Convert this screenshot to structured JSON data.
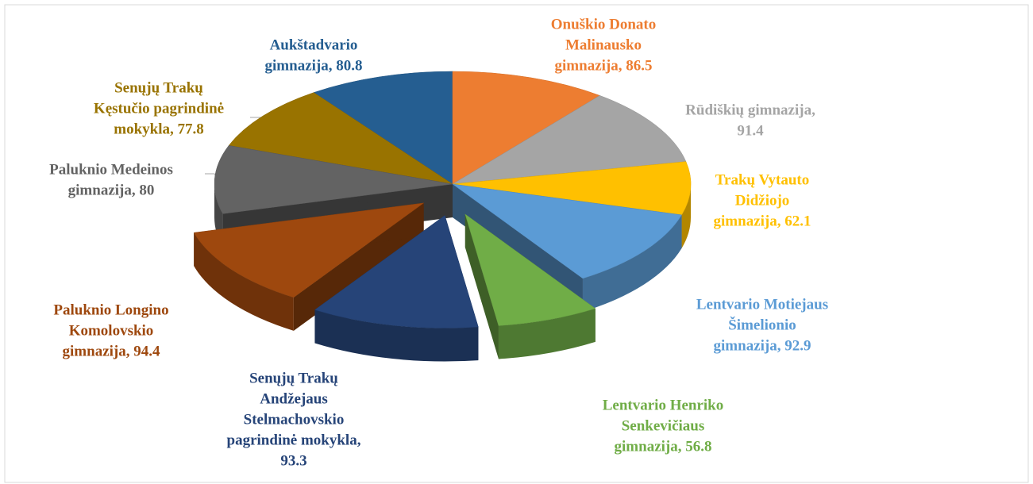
{
  "chart_data": {
    "type": "pie3d",
    "labels": [
      [
        "Onuškio Donato",
        "Malinausko",
        "gimnazija, 86.5"
      ],
      [
        "Rūdiškių gimnazija,",
        "91.4"
      ],
      [
        "Trakų Vytauto",
        "Didžiojo",
        "gimnazija, 62.1"
      ],
      [
        "Lentvario Motiejaus",
        "Šimelionio",
        "gimnazija, 92.9"
      ],
      [
        "Lentvario Henriko",
        "Senkevičiaus",
        "gimnazija, 56.8"
      ],
      [
        "Senųjų Trakų",
        "Andžejaus",
        "Stelmachovskio",
        "pagrindinė mokykla,",
        "93.3"
      ],
      [
        "Paluknio Longino",
        "Komolovskio",
        "gimnazija, 94.4"
      ],
      [
        "Paluknio Medeinos",
        "gimnazija, 80"
      ],
      [
        "Senųjų Trakų",
        "Kęstučio pagrindinė",
        "mokykla, 77.8"
      ],
      [
        "Aukštadvario",
        "gimnazija, 80.8"
      ]
    ],
    "values": [
      86.5,
      91.4,
      62.1,
      92.9,
      56.8,
      93.3,
      94.4,
      80,
      77.8,
      80.8
    ],
    "colors": [
      "#ED7D31",
      "#A5A5A5",
      "#FFC000",
      "#5B9BD5",
      "#70AD47",
      "#264478",
      "#9E480E",
      "#636363",
      "#997300",
      "#255E91"
    ],
    "explode": [
      false,
      false,
      false,
      false,
      true,
      true,
      true,
      false,
      false,
      false
    ]
  }
}
